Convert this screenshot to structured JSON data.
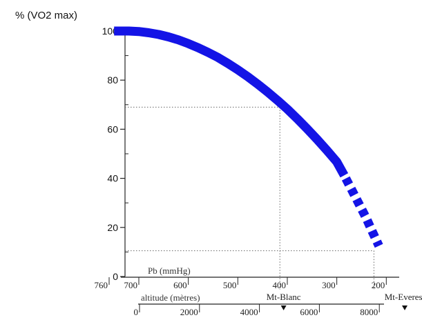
{
  "chart_data": {
    "type": "line",
    "ylabel": "% (VO2 max)",
    "ylim": [
      0,
      100
    ],
    "yticks": [
      0,
      20,
      40,
      60,
      80,
      100
    ],
    "pressure_axis": {
      "label": "Pb (mmHg)",
      "ticks": [
        760,
        700,
        600,
        500,
        400,
        300,
        200
      ]
    },
    "altitude_axis": {
      "label": "altitude (mètres)",
      "ticks": [
        0,
        2000,
        4000,
        6000,
        8000
      ]
    },
    "series": [
      {
        "pb": [
          750,
          720,
          700,
          680,
          660,
          640,
          620,
          600,
          580,
          560,
          540,
          520,
          500,
          480,
          460,
          440,
          420,
          400,
          380,
          360,
          340,
          320,
          300,
          285,
          270,
          255,
          240,
          228,
          215
        ],
        "values": [
          100,
          100,
          99.8,
          99.3,
          98.6,
          97.6,
          96.4,
          94.9,
          93.2,
          91.3,
          89.2,
          86.8,
          84.2,
          81.4,
          78.4,
          75.2,
          71.8,
          68.2,
          64.3,
          60.2,
          55.9,
          51.4,
          46.7,
          41.2,
          35.4,
          29.5,
          23.6,
          18.2,
          12.5
        ],
        "solid_until_pb": 285,
        "color": "#1414e6"
      }
    ],
    "reference_lines": [
      {
        "label": "Mt-Blanc",
        "pb": 415,
        "value": 69,
        "altitude": 4807
      },
      {
        "label": "Mt-Everest",
        "pb": 225,
        "value": 10.5,
        "altitude": 8848
      }
    ],
    "grid": false
  }
}
